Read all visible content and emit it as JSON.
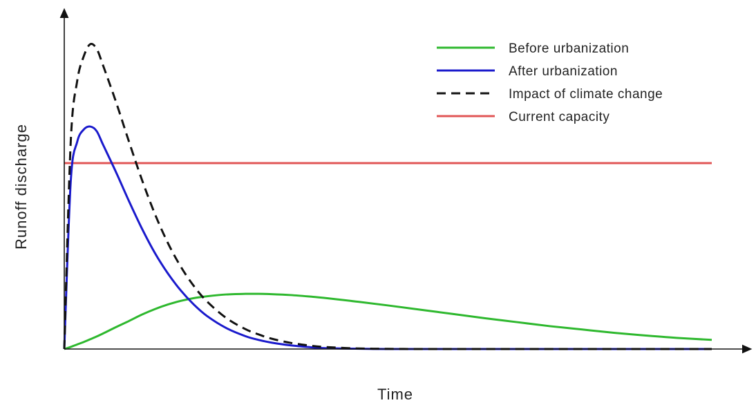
{
  "chart_data": {
    "type": "line",
    "title": "",
    "xlabel": "Time",
    "ylabel": "Runoff discharge",
    "xlim": [
      0,
      100
    ],
    "ylim": [
      0,
      100
    ],
    "grid": false,
    "legend_position": "top-right",
    "x": [
      0,
      1,
      2,
      3,
      4,
      5,
      6,
      8,
      10,
      12,
      14,
      16,
      18,
      20,
      22,
      25,
      28,
      30,
      32,
      35,
      38,
      40,
      45,
      50,
      55,
      60,
      65,
      70,
      75,
      80,
      85,
      90,
      95,
      100
    ],
    "series": [
      {
        "name": "Before urbanization",
        "color": "#2eb82e",
        "dash": "solid",
        "values": [
          0,
          0.7,
          1.5,
          2.3,
          3.2,
          4.1,
          5.1,
          7.2,
          9.2,
          11.3,
          13.1,
          14.6,
          15.8,
          16.7,
          17.3,
          17.9,
          18.1,
          18.1,
          18.0,
          17.7,
          17.2,
          16.8,
          15.6,
          14.3,
          12.9,
          11.5,
          10.1,
          8.8,
          7.5,
          6.4,
          5.3,
          4.4,
          3.6,
          3.0
        ]
      },
      {
        "name": "After urbanization",
        "color": "#1a1acc",
        "dash": "solid",
        "values": [
          0,
          55.0,
          68.0,
          72.0,
          73.0,
          71.5,
          67.0,
          58.0,
          48.5,
          39.5,
          31.5,
          24.8,
          19.2,
          14.6,
          10.9,
          6.9,
          4.2,
          3.0,
          2.1,
          1.2,
          0.6,
          0.3,
          0.1,
          0,
          0,
          0,
          0,
          0,
          0,
          0,
          0,
          0,
          0,
          0
        ]
      },
      {
        "name": "Impact of climate change",
        "color": "#111111",
        "dash": "dashed",
        "values": [
          0,
          68.0,
          88.0,
          96.0,
          100.0,
          98.5,
          93.0,
          81.0,
          68.0,
          55.5,
          44.3,
          34.8,
          27.0,
          20.7,
          15.7,
          10.2,
          6.5,
          4.8,
          3.4,
          2.0,
          1.1,
          0.7,
          0.2,
          0.05,
          0,
          0,
          0,
          0,
          0,
          0,
          0,
          0,
          0,
          0
        ]
      },
      {
        "name": "Current capacity",
        "color": "#e05555",
        "dash": "solid",
        "values": [
          61,
          61,
          61,
          61,
          61,
          61,
          61,
          61,
          61,
          61,
          61,
          61,
          61,
          61,
          61,
          61,
          61,
          61,
          61,
          61,
          61,
          61,
          61,
          61,
          61,
          61,
          61,
          61,
          61,
          61,
          61,
          61,
          61,
          61
        ]
      }
    ]
  }
}
